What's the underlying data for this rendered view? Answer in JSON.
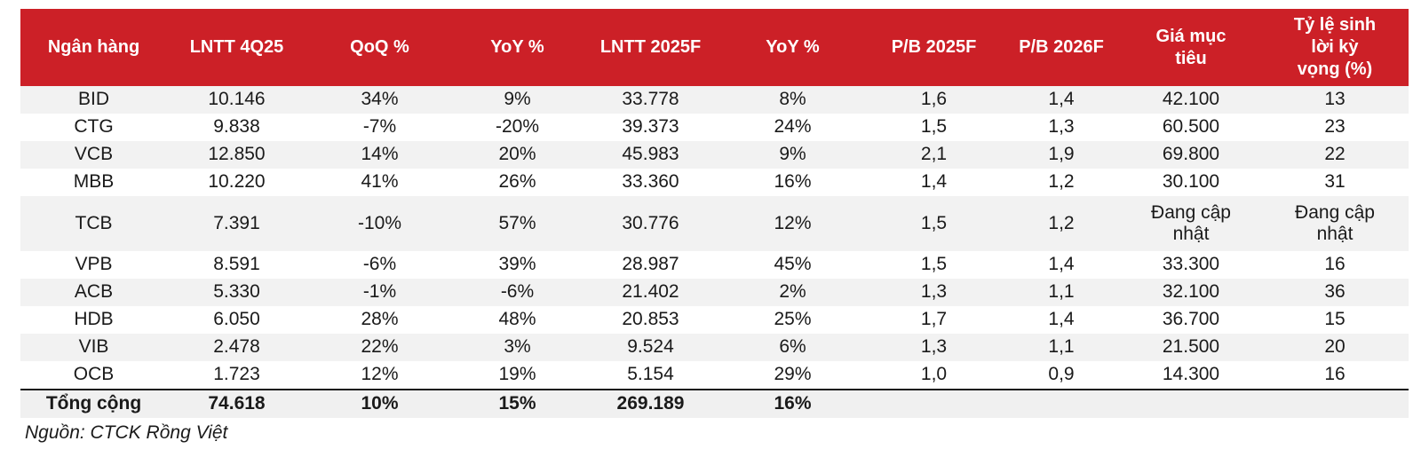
{
  "colors": {
    "header_bg": "#cc2027",
    "header_text": "#ffffff",
    "row_alt_bg": "#f2f2f2",
    "total_bg": "#f0f0f0",
    "text": "#1a1a1a"
  },
  "table": {
    "columns": [
      "Ngân hàng",
      "LNTT 4Q25",
      "QoQ %",
      "YoY %",
      "LNTT 2025F",
      "YoY %",
      "P/B 2025F",
      "P/B 2026F",
      "Giá mục tiêu",
      "Tỷ lệ sinh lời kỳ vọng (%)"
    ],
    "rows": [
      {
        "bank": "BID",
        "values": [
          "10.146",
          "34%",
          "9%",
          "33.778",
          "8%",
          "1,6",
          "1,4",
          "42.100",
          "13"
        ]
      },
      {
        "bank": "CTG",
        "values": [
          "9.838",
          "-7%",
          "-20%",
          "39.373",
          "24%",
          "1,5",
          "1,3",
          "60.500",
          "23"
        ]
      },
      {
        "bank": "VCB",
        "values": [
          "12.850",
          "14%",
          "20%",
          "45.983",
          "9%",
          "2,1",
          "1,9",
          "69.800",
          "22"
        ]
      },
      {
        "bank": "MBB",
        "values": [
          "10.220",
          "41%",
          "26%",
          "33.360",
          "16%",
          "1,4",
          "1,2",
          "30.100",
          "31"
        ]
      },
      {
        "bank": "TCB",
        "values": [
          "7.391",
          "-10%",
          "57%",
          "30.776",
          "12%",
          "1,5",
          "1,2",
          "Đang cập nhật",
          "Đang cập nhật"
        ]
      },
      {
        "bank": "VPB",
        "values": [
          "8.591",
          "-6%",
          "39%",
          "28.987",
          "45%",
          "1,5",
          "1,4",
          "33.300",
          "16"
        ]
      },
      {
        "bank": "ACB",
        "values": [
          "5.330",
          "-1%",
          "-6%",
          "21.402",
          "2%",
          "1,3",
          "1,1",
          "32.100",
          "36"
        ]
      },
      {
        "bank": "HDB",
        "values": [
          "6.050",
          "28%",
          "48%",
          "20.853",
          "25%",
          "1,7",
          "1,4",
          "36.700",
          "15"
        ]
      },
      {
        "bank": "VIB",
        "values": [
          "2.478",
          "22%",
          "3%",
          "9.524",
          "6%",
          "1,3",
          "1,1",
          "21.500",
          "20"
        ]
      },
      {
        "bank": "OCB",
        "values": [
          "1.723",
          "12%",
          "19%",
          "5.154",
          "29%",
          "1,0",
          "0,9",
          "14.300",
          "16"
        ]
      }
    ],
    "total": {
      "label": "Tổng cộng",
      "values": [
        "74.618",
        "10%",
        "15%",
        "269.189",
        "16%",
        "",
        "",
        "",
        ""
      ]
    }
  },
  "footer": {
    "source": "Nguồn: CTCK Rồng Việt"
  }
}
